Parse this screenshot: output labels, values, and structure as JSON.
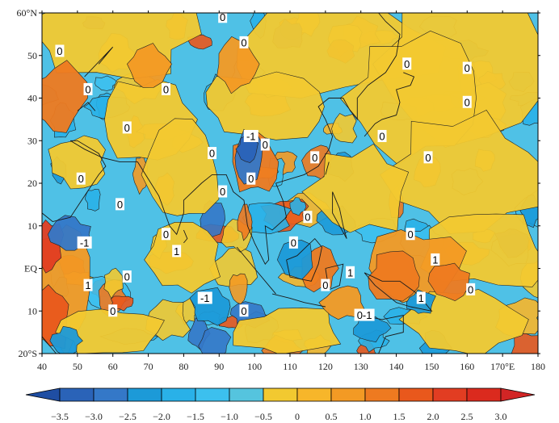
{
  "map": {
    "lon_range": [
      40,
      180
    ],
    "lat_range": [
      -20,
      60
    ],
    "x_ticks": [
      {
        "lon": 40,
        "label": "40"
      },
      {
        "lon": 50,
        "label": "50"
      },
      {
        "lon": 60,
        "label": "60"
      },
      {
        "lon": 70,
        "label": "70"
      },
      {
        "lon": 80,
        "label": "80"
      },
      {
        "lon": 90,
        "label": "90"
      },
      {
        "lon": 100,
        "label": "100"
      },
      {
        "lon": 110,
        "label": "110"
      },
      {
        "lon": 120,
        "label": "120"
      },
      {
        "lon": 130,
        "label": "130"
      },
      {
        "lon": 140,
        "label": "140"
      },
      {
        "lon": 150,
        "label": "150"
      },
      {
        "lon": 160,
        "label": "160"
      },
      {
        "lon": 170,
        "label": "170°E"
      },
      {
        "lon": 180,
        "label": "180"
      }
    ],
    "y_ticks": [
      {
        "lat": 60,
        "label": "60°N"
      },
      {
        "lat": 50,
        "label": "50"
      },
      {
        "lat": 40,
        "label": "40"
      },
      {
        "lat": 30,
        "label": "30"
      },
      {
        "lat": 20,
        "label": "20"
      },
      {
        "lat": 10,
        "label": "10"
      },
      {
        "lat": 0,
        "label": "EQ"
      },
      {
        "lat": -10,
        "label": "10"
      },
      {
        "lat": -20,
        "label": "20°S"
      }
    ],
    "contour_labels": [
      {
        "text": "0",
        "lon": 91,
        "lat": 59
      },
      {
        "text": "0",
        "lon": 45,
        "lat": 51
      },
      {
        "text": "0",
        "lon": 97,
        "lat": 53
      },
      {
        "text": "0",
        "lon": 143,
        "lat": 48
      },
      {
        "text": "0",
        "lon": 160,
        "lat": 47
      },
      {
        "text": "0",
        "lon": 53,
        "lat": 42
      },
      {
        "text": "0",
        "lon": 75,
        "lat": 42
      },
      {
        "text": "0",
        "lon": 160,
        "lat": 39
      },
      {
        "text": "0",
        "lon": 64,
        "lat": 33
      },
      {
        "text": "-1",
        "lon": 99,
        "lat": 31
      },
      {
        "text": "0",
        "lon": 103,
        "lat": 29
      },
      {
        "text": "0",
        "lon": 136,
        "lat": 31
      },
      {
        "text": "0",
        "lon": 88,
        "lat": 27
      },
      {
        "text": "0",
        "lon": 117,
        "lat": 26
      },
      {
        "text": "0",
        "lon": 149,
        "lat": 26
      },
      {
        "text": "0",
        "lon": 51,
        "lat": 21
      },
      {
        "text": "0",
        "lon": 99,
        "lat": 21
      },
      {
        "text": "0",
        "lon": 91,
        "lat": 18
      },
      {
        "text": "0",
        "lon": 62,
        "lat": 15
      },
      {
        "text": "0",
        "lon": 115,
        "lat": 12
      },
      {
        "text": "0",
        "lon": 75,
        "lat": 8
      },
      {
        "text": "0",
        "lon": 144,
        "lat": 8
      },
      {
        "text": "-1",
        "lon": 52,
        "lat": 6
      },
      {
        "text": "0",
        "lon": 111,
        "lat": 6
      },
      {
        "text": "1",
        "lon": 78,
        "lat": 4
      },
      {
        "text": "1",
        "lon": 151,
        "lat": 2
      },
      {
        "text": "0",
        "lon": 64,
        "lat": -2
      },
      {
        "text": "1",
        "lon": 127,
        "lat": -1
      },
      {
        "text": "0",
        "lon": 120,
        "lat": -4
      },
      {
        "text": "1",
        "lon": 53,
        "lat": -4
      },
      {
        "text": "1",
        "lon": 147,
        "lat": -7
      },
      {
        "text": "0",
        "lon": 161,
        "lat": -5
      },
      {
        "text": "-1",
        "lon": 86,
        "lat": -7
      },
      {
        "text": "0",
        "lon": 60,
        "lat": -10
      },
      {
        "text": "0",
        "lon": 97,
        "lat": -10
      },
      {
        "text": "0-1",
        "lon": 131,
        "lat": -11
      }
    ]
  },
  "colorbar": {
    "levels": [
      -3.5,
      -3.0,
      -2.5,
      -2.0,
      -1.5,
      -1.0,
      -0.5,
      0,
      0.5,
      1.0,
      1.5,
      2.0,
      2.5,
      3.0
    ],
    "labels": [
      "−3.5",
      "−3.0",
      "−2.5",
      "−2.0",
      "−1.5",
      "−1.0",
      "−0.5",
      "0",
      "0.5",
      "1.0",
      "1.5",
      "2.0",
      "2.5",
      "3.0"
    ],
    "colors": [
      "#1f4ea3",
      "#2a63b8",
      "#3478c8",
      "#1c9ad8",
      "#29b1e8",
      "#3cc0ee",
      "#55c4de",
      "#f2c930",
      "#f7b62a",
      "#f39a24",
      "#ee7a20",
      "#e9581c",
      "#e23d22",
      "#db2a1e",
      "#d22525"
    ]
  }
}
